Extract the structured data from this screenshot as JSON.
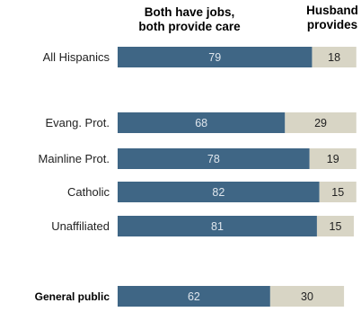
{
  "chart_data": {
    "type": "bar",
    "stacked": true,
    "orientation": "horizontal",
    "series": [
      {
        "name": "Both have jobs, both provide care",
        "color": "#3f6685",
        "label_color": "#dfe6ed",
        "values": [
          79,
          68,
          78,
          82,
          81,
          62
        ]
      },
      {
        "name": "Husband provides",
        "color": "#d8d5c5",
        "label_color": "#222222",
        "values": [
          18,
          29,
          19,
          15,
          15,
          30
        ]
      }
    ],
    "categories": [
      "All Hispanics",
      "Evang. Prot.",
      "Mainline Prot.",
      "Catholic",
      "Unaffiliated",
      "General public"
    ],
    "emphasized_categories": [
      "General public"
    ],
    "headers": {
      "series_0": [
        "Both have jobs,",
        "both provide care"
      ],
      "series_1": [
        "Husband",
        "provides"
      ]
    }
  }
}
